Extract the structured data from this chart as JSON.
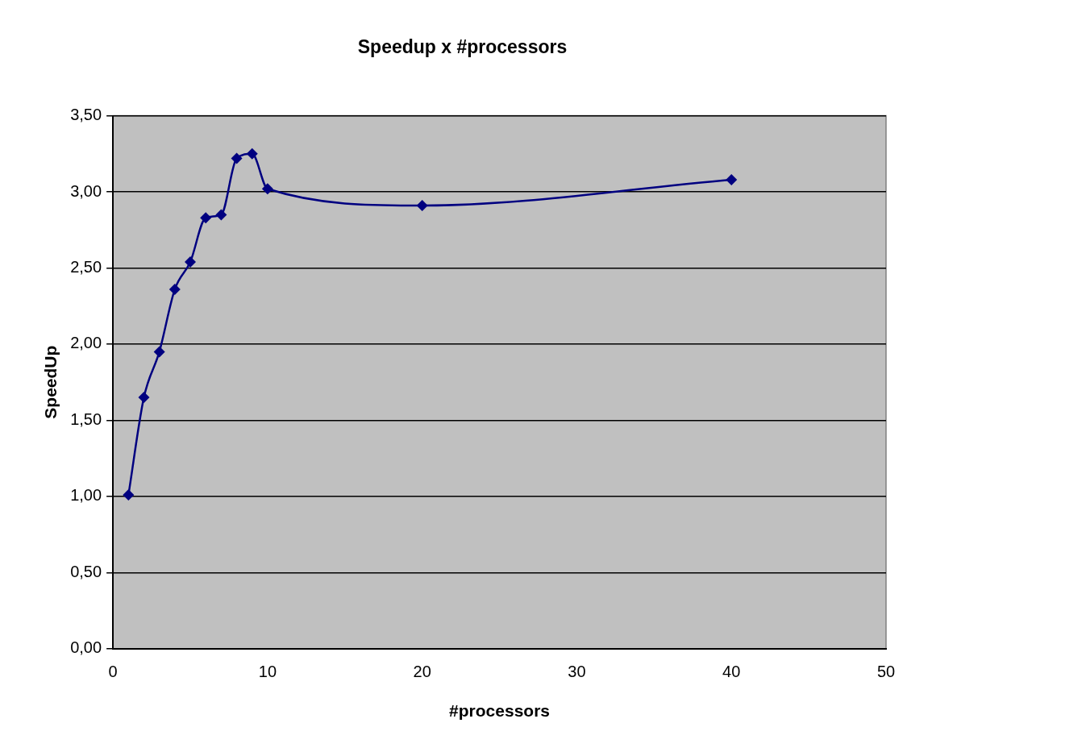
{
  "chart_data": {
    "type": "line",
    "title": "Speedup x #processors",
    "xlabel": "#processors",
    "ylabel": "SpeedUp",
    "x": [
      1,
      2,
      3,
      4,
      5,
      6,
      7,
      8,
      9,
      10,
      20,
      40
    ],
    "series": [
      {
        "color": "#000080",
        "values": [
          1.01,
          1.65,
          1.95,
          2.36,
          2.54,
          2.83,
          2.85,
          3.22,
          3.25,
          3.02,
          2.91,
          3.08
        ]
      }
    ],
    "xlim": [
      0,
      50
    ],
    "xticks": [
      0,
      10,
      20,
      30,
      40,
      50
    ],
    "ylim": [
      0,
      3.5
    ],
    "yticks": [
      {
        "value": 0,
        "label": "0,00"
      },
      {
        "value": 0.5,
        "label": "0,50"
      },
      {
        "value": 1,
        "label": "1,00"
      },
      {
        "value": 1.5,
        "label": "1,50"
      },
      {
        "value": 2,
        "label": "2,00"
      },
      {
        "value": 2.5,
        "label": "2,50"
      },
      {
        "value": 3,
        "label": "3,00"
      },
      {
        "value": 3.5,
        "label": "3,50"
      }
    ],
    "grid": "y",
    "legend": false,
    "marker": "diamond",
    "line_style": "solid"
  }
}
